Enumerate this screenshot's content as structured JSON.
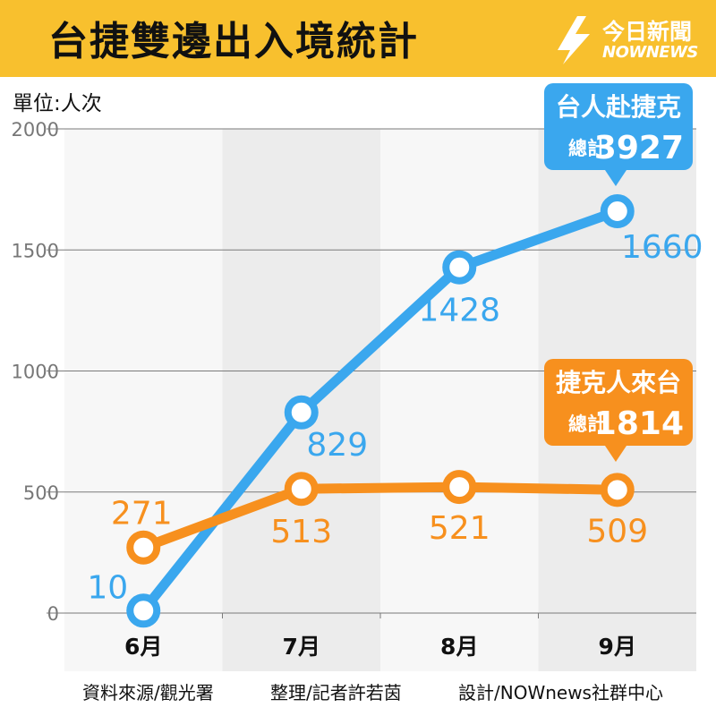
{
  "header": {
    "title": "台捷雙邊出入境統計",
    "logo_cn": "今日新聞",
    "logo_en": "NOWNEWS"
  },
  "unit_label": "單位:人次",
  "footer": {
    "source": "資料來源/觀光署",
    "editor": "整理/記者許若茵",
    "design": "設計/NOWnews社群中心"
  },
  "colors": {
    "header_bg": "#f8c02e",
    "blue_series": "#3aa7ee",
    "orange_series": "#f7901e"
  },
  "callouts": {
    "blue": {
      "title": "台人赴捷克",
      "total_label": "總計",
      "total_value": "3927"
    },
    "orange": {
      "title": "捷克人來台",
      "total_label": "總計",
      "total_value": "1814"
    }
  },
  "chart_data": {
    "type": "line",
    "title": "台捷雙邊出入境統計",
    "ylabel": "單位:人次",
    "categories": [
      "6月",
      "7月",
      "8月",
      "9月"
    ],
    "ylim": [
      0,
      2000
    ],
    "yticks": [
      0,
      500,
      1000,
      1500,
      2000
    ],
    "grid": true,
    "series": [
      {
        "name": "台人赴捷克",
        "color": "#3aa7ee",
        "values": [
          10,
          829,
          1428,
          1660
        ]
      },
      {
        "name": "捷克人來台",
        "color": "#f7901e",
        "values": [
          271,
          513,
          521,
          509
        ]
      }
    ]
  }
}
